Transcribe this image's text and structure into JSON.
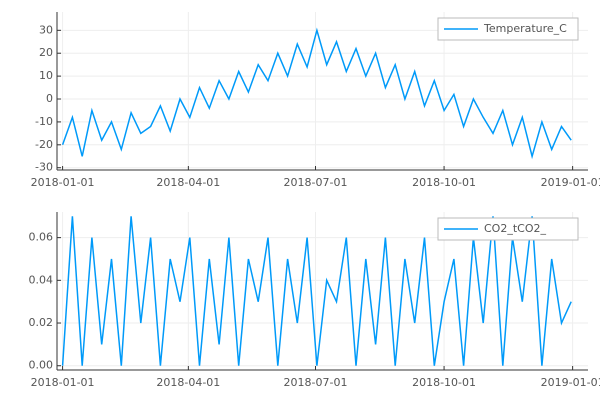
{
  "chart_data": [
    {
      "type": "line",
      "x": [
        "2018-01-01",
        "2018-01-08",
        "2018-01-15",
        "2018-01-22",
        "2018-01-29",
        "2018-02-05",
        "2018-02-12",
        "2018-02-19",
        "2018-02-26",
        "2018-03-05",
        "2018-03-12",
        "2018-03-19",
        "2018-03-26",
        "2018-04-02",
        "2018-04-09",
        "2018-04-16",
        "2018-04-23",
        "2018-04-30",
        "2018-05-07",
        "2018-05-14",
        "2018-05-21",
        "2018-05-28",
        "2018-06-04",
        "2018-06-11",
        "2018-06-18",
        "2018-06-25",
        "2018-07-02",
        "2018-07-09",
        "2018-07-16",
        "2018-07-23",
        "2018-07-30",
        "2018-08-06",
        "2018-08-13",
        "2018-08-20",
        "2018-08-27",
        "2018-09-03",
        "2018-09-10",
        "2018-09-17",
        "2018-09-24",
        "2018-10-01",
        "2018-10-08",
        "2018-10-15",
        "2018-10-22",
        "2018-10-29",
        "2018-11-05",
        "2018-11-12",
        "2018-11-19",
        "2018-11-26",
        "2018-12-03",
        "2018-12-10",
        "2018-12-17",
        "2018-12-24",
        "2018-12-31"
      ],
      "series": [
        {
          "name": "Temperature_C",
          "color": "#009af9",
          "values": [
            -20,
            -8,
            -25,
            -5,
            -18,
            -10,
            -22,
            -6,
            -15,
            -12,
            -3,
            -14,
            0,
            -8,
            5,
            -4,
            8,
            0,
            12,
            3,
            15,
            8,
            20,
            10,
            24,
            14,
            30,
            15,
            25,
            12,
            22,
            10,
            20,
            5,
            15,
            0,
            12,
            -3,
            8,
            -5,
            2,
            -12,
            0,
            -8,
            -15,
            -5,
            -20,
            -8,
            -25,
            -10,
            -22,
            -12,
            -18
          ]
        }
      ],
      "xlim": [
        "2017-12-28",
        "2019-01-12"
      ],
      "xticks": [
        "2018-01-01",
        "2018-04-01",
        "2018-07-01",
        "2018-10-01",
        "2019-01-01"
      ],
      "ylim": [
        -31,
        38
      ],
      "yticks": [
        -30,
        -20,
        -10,
        0,
        10,
        20,
        30
      ],
      "grid": true,
      "legend": "top-right"
    },
    {
      "type": "line",
      "x": [
        "2018-01-01",
        "2018-01-08",
        "2018-01-15",
        "2018-01-22",
        "2018-01-29",
        "2018-02-05",
        "2018-02-12",
        "2018-02-19",
        "2018-02-26",
        "2018-03-05",
        "2018-03-12",
        "2018-03-19",
        "2018-03-26",
        "2018-04-02",
        "2018-04-09",
        "2018-04-16",
        "2018-04-23",
        "2018-04-30",
        "2018-05-07",
        "2018-05-14",
        "2018-05-21",
        "2018-05-28",
        "2018-06-04",
        "2018-06-11",
        "2018-06-18",
        "2018-06-25",
        "2018-07-02",
        "2018-07-09",
        "2018-07-16",
        "2018-07-23",
        "2018-07-30",
        "2018-08-06",
        "2018-08-13",
        "2018-08-20",
        "2018-08-27",
        "2018-09-03",
        "2018-09-10",
        "2018-09-17",
        "2018-09-24",
        "2018-10-01",
        "2018-10-08",
        "2018-10-15",
        "2018-10-22",
        "2018-10-29",
        "2018-11-05",
        "2018-11-12",
        "2018-11-19",
        "2018-11-26",
        "2018-12-03",
        "2018-12-10",
        "2018-12-17",
        "2018-12-24",
        "2018-12-31"
      ],
      "series": [
        {
          "name": "CO2_tCO2_",
          "color": "#009af9",
          "values": [
            0,
            0.07,
            0,
            0.06,
            0.01,
            0.05,
            0,
            0.07,
            0.02,
            0.06,
            0,
            0.05,
            0.03,
            0.06,
            0,
            0.05,
            0.01,
            0.06,
            0,
            0.05,
            0.03,
            0.06,
            0,
            0.05,
            0.02,
            0.06,
            0,
            0.04,
            0.03,
            0.06,
            0,
            0.05,
            0.01,
            0.06,
            0,
            0.05,
            0.02,
            0.06,
            0,
            0.03,
            0.05,
            0,
            0.06,
            0.02,
            0.07,
            0,
            0.06,
            0.03,
            0.07,
            0,
            0.05,
            0.02,
            0.03
          ]
        }
      ],
      "xlim": [
        "2017-12-28",
        "2019-01-12"
      ],
      "xticks": [
        "2018-01-01",
        "2018-04-01",
        "2018-07-01",
        "2018-10-01",
        "2019-01-01"
      ],
      "ylim": [
        -0.002,
        0.072
      ],
      "yticks": [
        {
          "value": 0,
          "label": "0.00"
        },
        0.02,
        0.04,
        0.06
      ],
      "grid": true,
      "legend": "top-right"
    }
  ]
}
